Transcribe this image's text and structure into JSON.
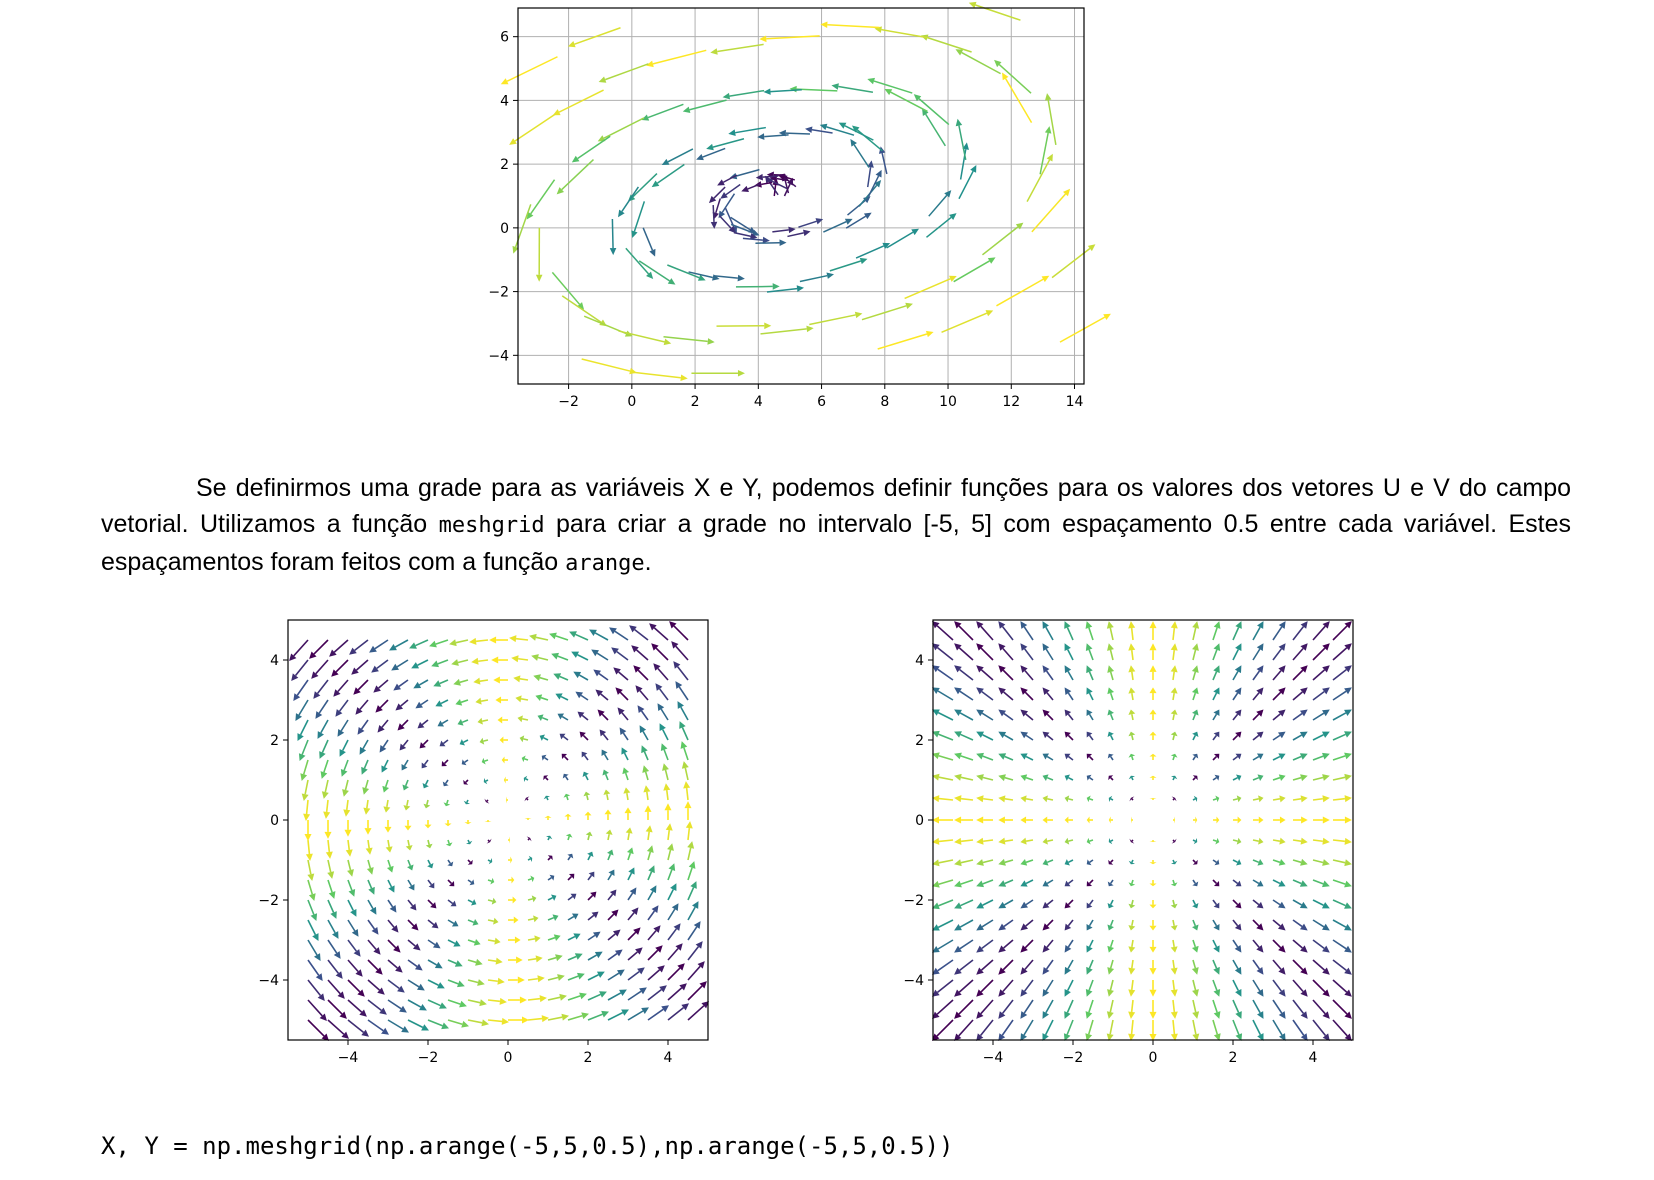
{
  "paragraph": {
    "part1": "Se definirmos uma grade para as variáveis X e Y, podemos definir funções para os valores dos vetores U e V do campo vetorial. Utilizamos a função ",
    "code1": "meshgrid",
    "part2": " para criar a grade no intervalo [-5, 5] com espaçamento 0.5 entre cada variável. Estes espaçamentos foram feitos com a função ",
    "code2": "arange",
    "part3": "."
  },
  "code_line": "X, Y = np.meshgrid(np.arange(-5,5,0.5),np.arange(-5,5,0.5))",
  "colors": {
    "viridis": [
      "#440154",
      "#3b528b",
      "#21918c",
      "#5ec962",
      "#fde725"
    ],
    "grid": "#b0b0b0",
    "axes": "#000000"
  },
  "chart_data": [
    {
      "type": "quiver",
      "title": "",
      "xlabel": "",
      "ylabel": "",
      "xlim": [
        -3.6,
        14.3
      ],
      "ylim": [
        -4.9,
        6.9
      ],
      "xticks": [
        -2,
        0,
        2,
        4,
        6,
        8,
        10,
        12,
        14
      ],
      "yticks": [
        -4,
        -2,
        0,
        2,
        4,
        6
      ],
      "xtick_labels": [
        "−2",
        "0",
        "2",
        "4",
        "6",
        "8",
        "10",
        "12",
        "14"
      ],
      "ytick_labels": [
        "−4",
        "−2",
        "0",
        "2",
        "4",
        "6"
      ],
      "grid": true,
      "colormap": "viridis",
      "field": "swirling spiral vortex centered near (4, 1)"
    },
    {
      "type": "quiver",
      "title": "",
      "xlabel": "",
      "ylabel": "",
      "xlim": [
        -5.5,
        5.0
      ],
      "ylim": [
        -5.5,
        5.0
      ],
      "xticks": [
        -4,
        -2,
        0,
        2,
        4
      ],
      "yticks": [
        -4,
        -2,
        0,
        2,
        4
      ],
      "xtick_labels": [
        "−4",
        "−2",
        "0",
        "2",
        "4"
      ],
      "ytick_labels": [
        "−4",
        "−2",
        "0",
        "2",
        "4"
      ],
      "grid": false,
      "colormap": "viridis",
      "grid_range": [
        -5,
        5
      ],
      "step": 0.5,
      "field": "rotation about origin, U = -Y, V = X"
    },
    {
      "type": "quiver",
      "title": "",
      "xlabel": "",
      "ylabel": "",
      "xlim": [
        -5.5,
        5.0
      ],
      "ylim": [
        -5.5,
        5.0
      ],
      "xticks": [
        -4,
        -2,
        0,
        2,
        4
      ],
      "yticks": [
        -4,
        -2,
        0,
        2,
        4
      ],
      "xtick_labels": [
        "−4",
        "−2",
        "0",
        "2",
        "4"
      ],
      "ytick_labels": [
        "−4",
        "−2",
        "0",
        "2",
        "4"
      ],
      "grid": false,
      "colormap": "viridis",
      "grid_range": [
        -5,
        5
      ],
      "step": 0.5,
      "field": "radial outward from origin, U = X, V = Y"
    }
  ]
}
